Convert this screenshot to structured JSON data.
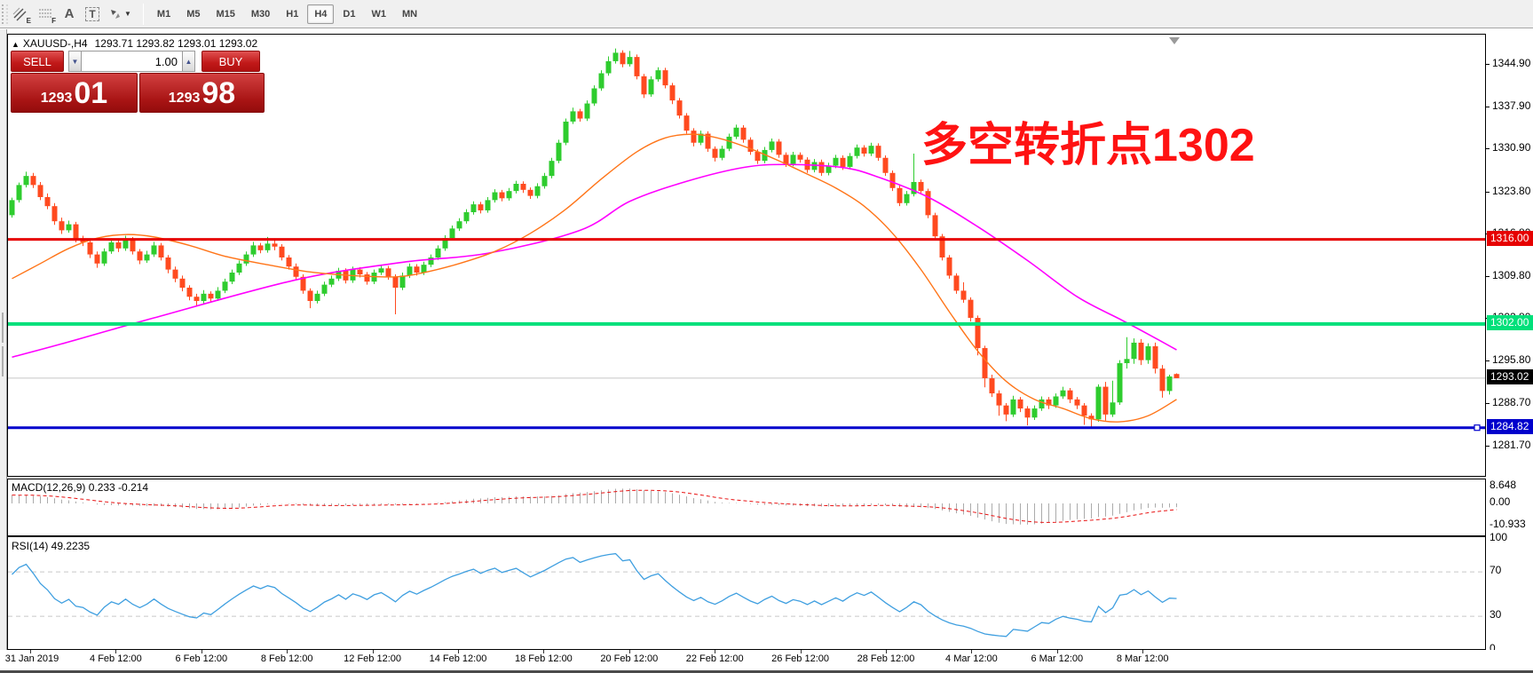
{
  "toolbar": {
    "icons": [
      {
        "name": "equidistant-channel-icon",
        "badge": "E"
      },
      {
        "name": "fibonacci-icon",
        "badge": "F"
      },
      {
        "name": "text-icon",
        "glyph": "A"
      },
      {
        "name": "text-label-icon",
        "glyph": "T"
      },
      {
        "name": "arrows-icon",
        "glyph": ""
      }
    ],
    "timeframes": [
      {
        "label": "M1",
        "active": false
      },
      {
        "label": "M5",
        "active": false
      },
      {
        "label": "M15",
        "active": false
      },
      {
        "label": "M30",
        "active": false
      },
      {
        "label": "H1",
        "active": false
      },
      {
        "label": "H4",
        "active": true
      },
      {
        "label": "D1",
        "active": false
      },
      {
        "label": "W1",
        "active": false
      },
      {
        "label": "MN",
        "active": false
      }
    ]
  },
  "chart": {
    "collapse_marker": "▲",
    "title": "XAUUSD-,H4",
    "ohlc": "1293.71 1293.82 1293.01 1293.02"
  },
  "trade_panel": {
    "sell_label": "SELL",
    "buy_label": "BUY",
    "volume": "1.00",
    "sell_price": {
      "big": "1293",
      "pips": "01"
    },
    "buy_price": {
      "big": "1293",
      "pips": "98"
    }
  },
  "annotation": {
    "text": "多空转折点1302",
    "color": "#ff1212"
  },
  "price_axis": {
    "ticks": [
      "1344.90",
      "1337.90",
      "1330.90",
      "1323.80",
      "1316.80",
      "1309.80",
      "1302.80",
      "1295.80",
      "1288.70",
      "1281.70"
    ],
    "tick_values": [
      1344.9,
      1337.9,
      1330.9,
      1323.8,
      1316.8,
      1309.8,
      1302.8,
      1295.8,
      1288.7,
      1281.7
    ]
  },
  "levels": [
    {
      "value": 1316.0,
      "label": "1316.00",
      "color": "#e60000",
      "thickness": 3
    },
    {
      "value": 1302.0,
      "label": "1302.00",
      "color": "#00e07a",
      "thickness": 4
    },
    {
      "value": 1284.82,
      "label": "1284.82",
      "color": "#0000cc",
      "thickness": 3
    }
  ],
  "current_price": {
    "value": 1293.02,
    "label": "1293.02",
    "line_color": "#c8c8c8",
    "tag_color": "#000000"
  },
  "indicators": {
    "macd": {
      "label": "MACD(12,26,9) 0.233 -0.214",
      "axis": [
        "8.648",
        "0.00",
        "-10.933"
      ],
      "axis_values": [
        8.648,
        0.0,
        -10.933
      ]
    },
    "rsi": {
      "label": "RSI(14) 49.2235",
      "axis": [
        "100",
        "70",
        "30",
        "0"
      ],
      "axis_values": [
        100,
        70,
        30,
        0
      ],
      "levels": [
        70,
        30
      ]
    }
  },
  "time_axis": {
    "labels": [
      "31 Jan 2019",
      "4 Feb 12:00",
      "6 Feb 12:00",
      "8 Feb 12:00",
      "12 Feb 12:00",
      "14 Feb 12:00",
      "18 Feb 12:00",
      "20 Feb 12:00",
      "22 Feb 12:00",
      "26 Feb 12:00",
      "28 Feb 12:00",
      "4 Mar 12:00",
      "6 Mar 12:00",
      "8 Mar 12:00"
    ]
  },
  "chart_data": {
    "type": "candlestick",
    "symbol": "XAUUSD-",
    "timeframe": "H4",
    "last_bar": {
      "open": 1293.71,
      "high": 1293.82,
      "low": 1293.01,
      "close": 1293.02
    },
    "price_range": [
      1277.5,
      1350.6
    ],
    "hlines": [
      1316.0,
      1302.0,
      1284.82
    ],
    "colors": {
      "up": "#2ecc2e",
      "down": "#ff4a1f",
      "ma_fast": "#ff7519",
      "ma_slow": "#ff00ff",
      "macd_bar": "#ababab",
      "macd_signal": "#e81111",
      "rsi_line": "#3f9fe0"
    },
    "candles": [
      [
        1320.0,
        1322.9,
        1319.6,
        1322.5
      ],
      [
        1322.5,
        1325.4,
        1322.1,
        1325.0
      ],
      [
        1325.0,
        1327.2,
        1324.6,
        1326.5
      ],
      [
        1326.5,
        1327.0,
        1324.5,
        1325.0
      ],
      [
        1325.0,
        1325.5,
        1322.5,
        1323.0
      ],
      [
        1323.0,
        1323.6,
        1321.0,
        1321.5
      ],
      [
        1321.5,
        1322.0,
        1318.4,
        1319.0
      ],
      [
        1319.0,
        1319.6,
        1316.9,
        1317.5
      ],
      [
        1317.5,
        1319.1,
        1317.1,
        1318.5
      ],
      [
        1318.5,
        1318.9,
        1315.5,
        1316.0
      ],
      [
        1316.0,
        1316.6,
        1314.9,
        1315.5
      ],
      [
        1315.5,
        1315.9,
        1312.9,
        1313.5
      ],
      [
        1313.5,
        1314.0,
        1311.3,
        1312.0
      ],
      [
        1312.0,
        1314.5,
        1311.6,
        1314.0
      ],
      [
        1314.0,
        1316.1,
        1313.6,
        1315.5
      ],
      [
        1315.5,
        1315.9,
        1313.9,
        1314.5
      ],
      [
        1314.5,
        1316.6,
        1314.1,
        1316.0
      ],
      [
        1316.0,
        1316.4,
        1313.5,
        1314.0
      ],
      [
        1314.0,
        1314.4,
        1311.9,
        1312.5
      ],
      [
        1312.5,
        1314.1,
        1312.1,
        1313.5
      ],
      [
        1313.5,
        1315.6,
        1313.1,
        1315.0
      ],
      [
        1315.0,
        1315.4,
        1312.5,
        1313.0
      ],
      [
        1313.0,
        1313.4,
        1310.4,
        1311.0
      ],
      [
        1311.0,
        1311.5,
        1308.9,
        1309.5
      ],
      [
        1309.5,
        1310.0,
        1307.4,
        1308.0
      ],
      [
        1308.0,
        1308.4,
        1305.9,
        1306.5
      ],
      [
        1306.5,
        1307.0,
        1304.9,
        1305.8
      ],
      [
        1305.8,
        1307.6,
        1305.3,
        1307.0
      ],
      [
        1307.0,
        1307.4,
        1305.6,
        1306.2
      ],
      [
        1306.2,
        1308.1,
        1305.8,
        1307.5
      ],
      [
        1307.5,
        1309.5,
        1307.1,
        1309.0
      ],
      [
        1309.0,
        1311.0,
        1308.6,
        1310.5
      ],
      [
        1310.5,
        1312.5,
        1310.1,
        1312.0
      ],
      [
        1312.0,
        1314.0,
        1311.6,
        1313.5
      ],
      [
        1313.5,
        1315.6,
        1313.1,
        1315.0
      ],
      [
        1315.0,
        1315.4,
        1313.7,
        1314.2
      ],
      [
        1314.2,
        1316.4,
        1313.8,
        1315.3
      ],
      [
        1315.3,
        1315.8,
        1314.2,
        1314.8
      ],
      [
        1314.8,
        1315.2,
        1312.5,
        1313.0
      ],
      [
        1313.0,
        1313.4,
        1311.0,
        1311.5
      ],
      [
        1311.5,
        1312.0,
        1309.3,
        1309.8
      ],
      [
        1309.8,
        1310.2,
        1307.0,
        1307.5
      ],
      [
        1307.5,
        1307.9,
        1304.6,
        1305.8
      ],
      [
        1305.8,
        1307.5,
        1305.4,
        1307.0
      ],
      [
        1307.0,
        1309.0,
        1306.6,
        1308.5
      ],
      [
        1308.5,
        1310.0,
        1308.1,
        1309.5
      ],
      [
        1309.5,
        1311.3,
        1309.1,
        1310.8
      ],
      [
        1310.8,
        1311.2,
        1308.7,
        1309.2
      ],
      [
        1309.2,
        1311.5,
        1308.8,
        1311.0
      ],
      [
        1311.0,
        1311.4,
        1309.7,
        1310.2
      ],
      [
        1310.2,
        1310.6,
        1308.5,
        1309.0
      ],
      [
        1309.0,
        1311.0,
        1308.6,
        1310.5
      ],
      [
        1310.5,
        1311.7,
        1310.1,
        1311.2
      ],
      [
        1311.2,
        1311.6,
        1309.3,
        1309.8
      ],
      [
        1309.8,
        1310.2,
        1303.6,
        1308.0
      ],
      [
        1308.0,
        1310.5,
        1307.6,
        1310.0
      ],
      [
        1310.0,
        1312.0,
        1309.6,
        1311.5
      ],
      [
        1311.5,
        1311.9,
        1310.0,
        1310.5
      ],
      [
        1310.5,
        1312.3,
        1310.1,
        1311.8
      ],
      [
        1311.8,
        1313.5,
        1311.4,
        1313.0
      ],
      [
        1313.0,
        1315.0,
        1312.6,
        1314.5
      ],
      [
        1314.5,
        1316.7,
        1314.1,
        1316.2
      ],
      [
        1316.2,
        1318.3,
        1315.8,
        1317.8
      ],
      [
        1317.8,
        1319.5,
        1317.4,
        1319.0
      ],
      [
        1319.0,
        1321.0,
        1318.6,
        1320.5
      ],
      [
        1320.5,
        1322.3,
        1320.1,
        1321.8
      ],
      [
        1321.8,
        1322.2,
        1320.3,
        1320.8
      ],
      [
        1320.8,
        1323.0,
        1320.4,
        1322.5
      ],
      [
        1322.5,
        1324.3,
        1322.1,
        1323.8
      ],
      [
        1323.8,
        1324.2,
        1322.3,
        1322.8
      ],
      [
        1322.8,
        1324.5,
        1322.4,
        1324.0
      ],
      [
        1324.0,
        1325.7,
        1323.6,
        1325.2
      ],
      [
        1325.2,
        1325.6,
        1323.7,
        1324.2
      ],
      [
        1324.2,
        1324.6,
        1322.7,
        1323.2
      ],
      [
        1323.2,
        1325.3,
        1322.8,
        1324.8
      ],
      [
        1324.8,
        1327.0,
        1324.4,
        1326.5
      ],
      [
        1326.5,
        1329.5,
        1326.1,
        1329.0
      ],
      [
        1329.0,
        1332.5,
        1328.6,
        1332.0
      ],
      [
        1332.0,
        1336.0,
        1331.6,
        1335.5
      ],
      [
        1335.5,
        1337.8,
        1335.1,
        1337.2
      ],
      [
        1337.2,
        1337.6,
        1335.5,
        1336.0
      ],
      [
        1336.0,
        1339.0,
        1335.6,
        1338.5
      ],
      [
        1338.5,
        1341.5,
        1338.1,
        1341.0
      ],
      [
        1341.0,
        1344.0,
        1340.6,
        1343.5
      ],
      [
        1343.5,
        1346.3,
        1343.1,
        1345.5
      ],
      [
        1345.5,
        1347.6,
        1345.1,
        1346.9
      ],
      [
        1346.9,
        1347.3,
        1344.5,
        1345.0
      ],
      [
        1345.0,
        1347.2,
        1344.6,
        1346.2
      ],
      [
        1346.2,
        1346.6,
        1342.5,
        1343.0
      ],
      [
        1343.0,
        1343.4,
        1339.4,
        1340.0
      ],
      [
        1340.0,
        1343.0,
        1339.6,
        1342.5
      ],
      [
        1342.5,
        1344.5,
        1342.1,
        1344.0
      ],
      [
        1344.0,
        1344.4,
        1341.0,
        1341.5
      ],
      [
        1341.5,
        1341.9,
        1338.4,
        1339.0
      ],
      [
        1339.0,
        1339.4,
        1336.0,
        1336.5
      ],
      [
        1336.5,
        1336.9,
        1333.5,
        1334.0
      ],
      [
        1334.0,
        1334.4,
        1331.4,
        1332.0
      ],
      [
        1332.0,
        1334.0,
        1331.6,
        1333.5
      ],
      [
        1333.5,
        1333.9,
        1330.5,
        1331.0
      ],
      [
        1331.0,
        1331.4,
        1328.9,
        1329.5
      ],
      [
        1329.5,
        1331.5,
        1329.1,
        1331.0
      ],
      [
        1331.0,
        1333.5,
        1330.6,
        1333.0
      ],
      [
        1333.0,
        1335.0,
        1332.6,
        1334.5
      ],
      [
        1334.5,
        1334.9,
        1332.0,
        1332.5
      ],
      [
        1332.5,
        1332.9,
        1330.0,
        1330.5
      ],
      [
        1330.5,
        1330.9,
        1328.5,
        1329.0
      ],
      [
        1329.0,
        1331.3,
        1328.6,
        1330.8
      ],
      [
        1330.8,
        1332.7,
        1330.4,
        1332.2
      ],
      [
        1332.2,
        1332.6,
        1329.5,
        1330.0
      ],
      [
        1330.0,
        1330.4,
        1328.0,
        1328.5
      ],
      [
        1328.5,
        1330.5,
        1328.1,
        1330.0
      ],
      [
        1330.0,
        1330.4,
        1328.7,
        1329.2
      ],
      [
        1329.2,
        1329.6,
        1327.0,
        1327.5
      ],
      [
        1327.5,
        1329.3,
        1327.1,
        1328.8
      ],
      [
        1328.8,
        1329.2,
        1326.5,
        1327.0
      ],
      [
        1327.0,
        1328.7,
        1326.6,
        1328.2
      ],
      [
        1328.2,
        1330.0,
        1327.8,
        1329.5
      ],
      [
        1329.5,
        1329.9,
        1327.5,
        1328.0
      ],
      [
        1328.0,
        1330.3,
        1327.6,
        1329.8
      ],
      [
        1329.8,
        1331.7,
        1329.4,
        1331.2
      ],
      [
        1331.2,
        1331.6,
        1329.7,
        1330.2
      ],
      [
        1330.2,
        1332.0,
        1329.8,
        1331.5
      ],
      [
        1331.5,
        1331.9,
        1329.0,
        1329.5
      ],
      [
        1329.5,
        1329.9,
        1326.5,
        1327.0
      ],
      [
        1327.0,
        1327.4,
        1324.0,
        1324.5
      ],
      [
        1324.5,
        1324.9,
        1321.5,
        1322.0
      ],
      [
        1322.0,
        1324.0,
        1321.6,
        1323.5
      ],
      [
        1323.5,
        1330.2,
        1323.1,
        1325.5
      ],
      [
        1325.5,
        1325.9,
        1323.5,
        1324.0
      ],
      [
        1324.0,
        1324.4,
        1319.5,
        1320.0
      ],
      [
        1320.0,
        1320.4,
        1316.0,
        1316.5
      ],
      [
        1316.5,
        1316.9,
        1312.5,
        1313.0
      ],
      [
        1313.0,
        1313.4,
        1309.5,
        1310.0
      ],
      [
        1310.0,
        1310.4,
        1307.0,
        1307.5
      ],
      [
        1307.5,
        1308.9,
        1305.5,
        1306.0
      ],
      [
        1306.0,
        1306.4,
        1302.4,
        1303.0
      ],
      [
        1303.0,
        1303.4,
        1296.8,
        1298.0
      ],
      [
        1298.0,
        1298.4,
        1291.5,
        1293.0
      ],
      [
        1293.0,
        1293.6,
        1289.9,
        1290.5
      ],
      [
        1290.5,
        1291.0,
        1286.8,
        1288.5
      ],
      [
        1288.5,
        1288.9,
        1285.9,
        1287.0
      ],
      [
        1287.0,
        1290.1,
        1286.6,
        1289.5
      ],
      [
        1289.5,
        1289.9,
        1287.4,
        1288.0
      ],
      [
        1288.0,
        1288.4,
        1285.2,
        1286.5
      ],
      [
        1286.5,
        1288.5,
        1286.1,
        1288.0
      ],
      [
        1288.0,
        1290.0,
        1287.6,
        1289.5
      ],
      [
        1289.5,
        1289.9,
        1287.9,
        1288.5
      ],
      [
        1288.5,
        1290.5,
        1288.1,
        1290.0
      ],
      [
        1290.0,
        1291.6,
        1289.6,
        1291.0
      ],
      [
        1291.0,
        1291.4,
        1288.9,
        1289.5
      ],
      [
        1289.5,
        1289.9,
        1287.9,
        1288.5
      ],
      [
        1288.5,
        1288.9,
        1285.3,
        1286.8
      ],
      [
        1286.8,
        1287.2,
        1284.95,
        1286.2
      ],
      [
        1286.2,
        1292.0,
        1285.8,
        1291.6
      ],
      [
        1291.6,
        1292.4,
        1286.0,
        1287.0
      ],
      [
        1287.0,
        1292.6,
        1286.6,
        1289.0
      ],
      [
        1289.0,
        1296.0,
        1288.6,
        1295.5
      ],
      [
        1295.5,
        1299.8,
        1294.6,
        1296.2
      ],
      [
        1296.2,
        1299.6,
        1295.4,
        1298.9
      ],
      [
        1298.9,
        1299.5,
        1295.2,
        1296.0
      ],
      [
        1296.0,
        1298.8,
        1295.4,
        1298.3
      ],
      [
        1298.3,
        1298.9,
        1293.8,
        1294.6
      ],
      [
        1294.6,
        1295.2,
        1289.8,
        1290.9
      ],
      [
        1290.9,
        1293.6,
        1290.3,
        1293.3
      ],
      [
        1293.71,
        1293.82,
        1293.01,
        1293.02
      ]
    ],
    "ma_fast_orange": [
      [
        0,
        1309.5
      ],
      [
        4,
        1312
      ],
      [
        8,
        1314.5
      ],
      [
        12,
        1316.2
      ],
      [
        16,
        1316.8
      ],
      [
        20,
        1316.4
      ],
      [
        25,
        1315
      ],
      [
        30,
        1313.2
      ],
      [
        36,
        1311.8
      ],
      [
        42,
        1310.6
      ],
      [
        48,
        1310
      ],
      [
        54,
        1309.8
      ],
      [
        58,
        1310.5
      ],
      [
        63,
        1312
      ],
      [
        68,
        1314
      ],
      [
        73,
        1317
      ],
      [
        78,
        1321
      ],
      [
        83,
        1326
      ],
      [
        88,
        1330.5
      ],
      [
        92,
        1332.8
      ],
      [
        96,
        1333.4
      ],
      [
        100,
        1332.6
      ],
      [
        104,
        1331
      ],
      [
        108,
        1329
      ],
      [
        112,
        1326.8
      ],
      [
        116,
        1324.5
      ],
      [
        120,
        1321.5
      ],
      [
        124,
        1317
      ],
      [
        128,
        1311
      ],
      [
        132,
        1304
      ],
      [
        136,
        1297.5
      ],
      [
        140,
        1292.5
      ],
      [
        144,
        1289.5
      ],
      [
        148,
        1288
      ],
      [
        152,
        1286.3
      ],
      [
        156,
        1285.8
      ],
      [
        160,
        1286.8
      ],
      [
        164,
        1289.5
      ]
    ],
    "ma_slow_magenta": [
      [
        0,
        1296.5
      ],
      [
        7,
        1298.7
      ],
      [
        20,
        1303
      ],
      [
        40,
        1309.3
      ],
      [
        55,
        1312.2
      ],
      [
        67,
        1313.7
      ],
      [
        80,
        1317.5
      ],
      [
        87,
        1322.3
      ],
      [
        95,
        1325.6
      ],
      [
        103,
        1327.9
      ],
      [
        109,
        1328.4
      ],
      [
        117,
        1327.9
      ],
      [
        122,
        1326.3
      ],
      [
        129,
        1323
      ],
      [
        136,
        1318.1
      ],
      [
        143,
        1312.5
      ],
      [
        150,
        1306.5
      ],
      [
        156,
        1302.8
      ],
      [
        160,
        1300.3
      ],
      [
        164,
        1297.7
      ]
    ]
  }
}
